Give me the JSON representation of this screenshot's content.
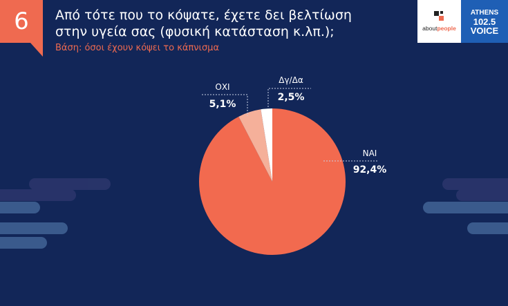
{
  "header": {
    "number": "6",
    "title_line1": "Από τότε που το κόψατε, έχετε δει βελτίωση",
    "title_line2": "στην υγεία σας (φυσική κατάσταση κ.λπ.);",
    "subtitle": "Βάση: όσοι έχουν κόψει το κάπνισμα"
  },
  "logos": {
    "aboutpeople_prefix": "about",
    "aboutpeople_suffix": "people",
    "voice_line1": "ATHENS",
    "voice_line2": "102.5",
    "voice_line3": "VOICE"
  },
  "colors": {
    "background": "#122658",
    "accent": "#ef6a50",
    "nai": "#f26a4f",
    "oxi": "#f5b09a",
    "dgda": "#ffffff"
  },
  "chart_data": {
    "type": "pie",
    "title": "Από τότε που το κόψατε, έχετε δει βελτίωση στην υγεία σας (φυσική κατάσταση κ.λπ.);",
    "slices": [
      {
        "label": "ΝΑΙ",
        "value": 92.4,
        "display": "92,4%",
        "color": "#f26a4f"
      },
      {
        "label": "ΟΧΙ",
        "value": 5.1,
        "display": "5,1%",
        "color": "#f5b09a"
      },
      {
        "label": "Δγ/Δα",
        "value": 2.5,
        "display": "2,5%",
        "color": "#ffffff"
      }
    ]
  }
}
